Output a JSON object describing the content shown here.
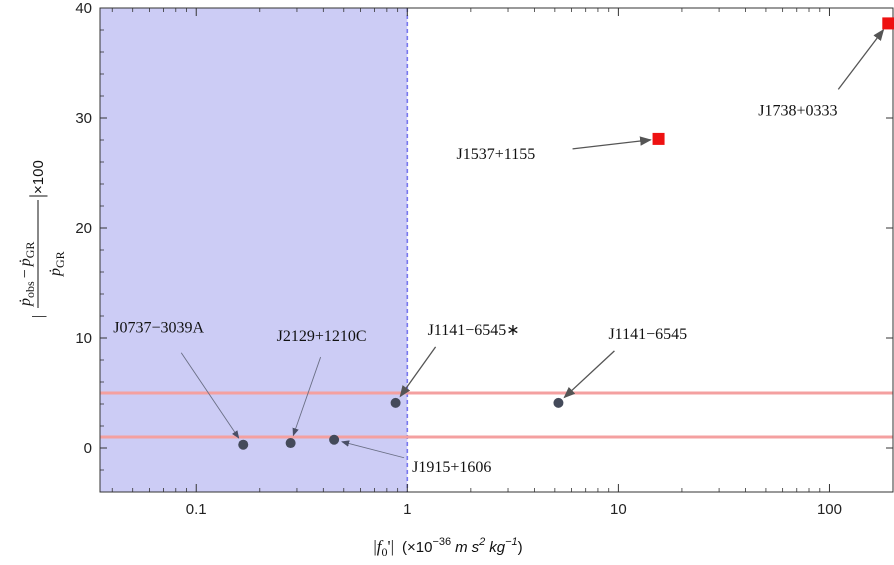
{
  "chart_data": {
    "type": "scatter",
    "xscale": "log",
    "xlim": [
      0.035,
      200
    ],
    "ylim": [
      -4,
      40
    ],
    "xticks": [
      0.1,
      1,
      10,
      100
    ],
    "xtick_labels": [
      "0.1",
      "1",
      "10",
      "100"
    ],
    "yticks": [
      0,
      10,
      20,
      30,
      40
    ],
    "ytick_labels": [
      "0",
      "10",
      "20",
      "30",
      "40"
    ],
    "xlabel": {
      "abs_open": "|",
      "f_symbol": "f",
      "f_sub": "0",
      "f_prime_close": "'|",
      "unit_open": "(×10",
      "unit_exp": "−36",
      "unit_m": "m",
      "unit_s": "s",
      "unit_s_exp": "2",
      "unit_kg": "kg",
      "unit_kg_exp": "−1",
      "unit_close": ")"
    },
    "ylabel": {
      "bar": "|",
      "num_p": "ṗ",
      "num_p_sub": "obs",
      "minus": "−",
      "num_p2": "ṗ",
      "num_p2_sub": "GR",
      "times": "×100",
      "den_p": "ṗ",
      "den_p_sub": "GR"
    },
    "shaded_region": {
      "x_from": 0.035,
      "x_to": 1,
      "color": "#ccccf5"
    },
    "vertical_line": {
      "x": 1,
      "color": "#7777ee"
    },
    "horizontal_lines": [
      {
        "y": 5,
        "color": "#f4a0a0"
      },
      {
        "y": 1,
        "color": "#f4a0a0"
      }
    ],
    "series": [
      {
        "marker": "circle",
        "color": "#444a5a",
        "points": [
          {
            "x": 0.167,
            "y": 0.3,
            "label": "J0737−3039A"
          },
          {
            "x": 0.28,
            "y": 0.45,
            "label": "J2129+1210C"
          },
          {
            "x": 0.45,
            "y": 0.75,
            "label": "J1915+1606"
          },
          {
            "x": 0.88,
            "y": 4.1,
            "label": "J1141−6545∗"
          },
          {
            "x": 5.2,
            "y": 4.1,
            "label": "J1141−6545"
          }
        ]
      },
      {
        "marker": "square",
        "color": "#ee1111",
        "points": [
          {
            "x": 15.5,
            "y": 28.1,
            "label": "J1537+1155"
          },
          {
            "x": 190,
            "y": 38.6,
            "label": "J1738+0333"
          }
        ]
      }
    ]
  }
}
